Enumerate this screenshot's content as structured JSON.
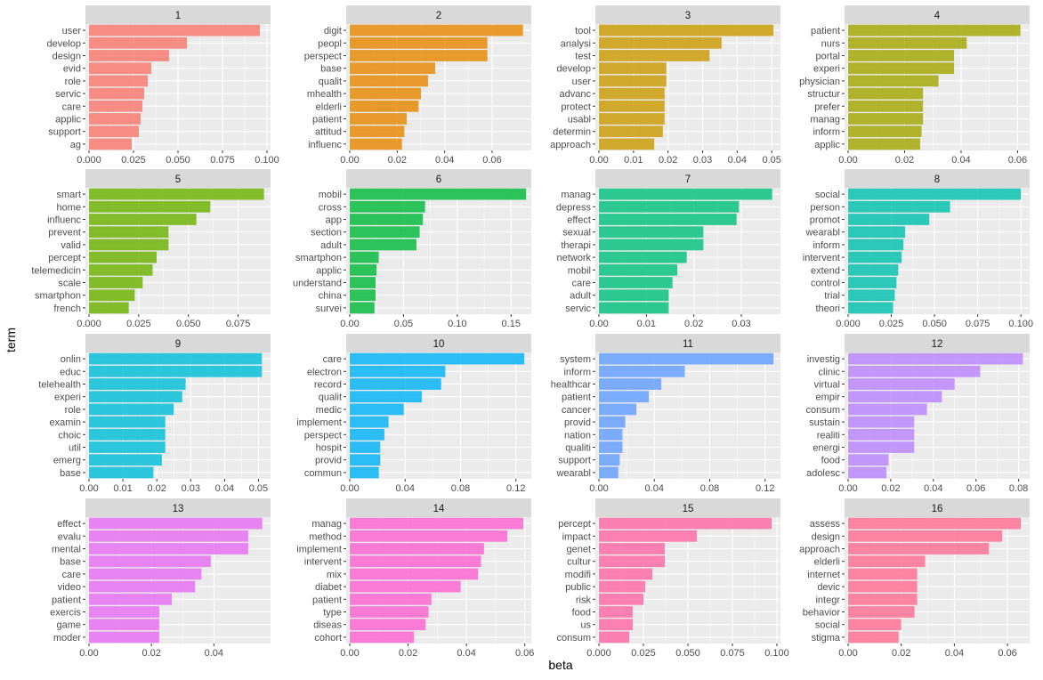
{
  "chart_data": {
    "type": "bar",
    "orientation": "horizontal",
    "xlabel": "beta",
    "ylabel": "term",
    "panels": [
      {
        "label": "1",
        "xlim": [
          0,
          0.1
        ],
        "ticks": [
          0,
          0.025,
          0.05,
          0.075,
          0.1
        ],
        "tick_labels": [
          "0.000",
          "0.025",
          "0.050",
          "0.075",
          "0.100"
        ],
        "categories": [
          "user",
          "develop",
          "design",
          "evid",
          "role",
          "servic",
          "care",
          "applic",
          "support",
          "ag"
        ],
        "values": [
          0.096,
          0.055,
          0.045,
          0.035,
          0.033,
          0.031,
          0.03,
          0.029,
          0.028,
          0.024
        ]
      },
      {
        "label": "2",
        "xlim": [
          0,
          0.075
        ],
        "ticks": [
          0,
          0.02,
          0.04,
          0.06
        ],
        "tick_labels": [
          "0.00",
          "0.02",
          "0.04",
          "0.06"
        ],
        "categories": [
          "digit",
          "peopl",
          "perspect",
          "base",
          "qualit",
          "mhealth",
          "elderli",
          "patient",
          "attitud",
          "influenc"
        ],
        "values": [
          0.073,
          0.058,
          0.058,
          0.036,
          0.033,
          0.03,
          0.029,
          0.024,
          0.023,
          0.022
        ]
      },
      {
        "label": "3",
        "xlim": [
          0,
          0.0515
        ],
        "ticks": [
          0,
          0.01,
          0.02,
          0.03,
          0.04,
          0.05
        ],
        "tick_labels": [
          "0.00",
          "0.01",
          "0.02",
          "0.03",
          "0.04",
          "0.05"
        ],
        "categories": [
          "tool",
          "analysi",
          "test",
          "develop",
          "user",
          "advanc",
          "protect",
          "usabl",
          "determin",
          "approach"
        ],
        "values": [
          0.0505,
          0.0355,
          0.032,
          0.0195,
          0.0195,
          0.019,
          0.019,
          0.019,
          0.0185,
          0.016
        ]
      },
      {
        "label": "4",
        "xlim": [
          0,
          0.063
        ],
        "ticks": [
          0,
          0.02,
          0.04,
          0.06
        ],
        "tick_labels": [
          "0.00",
          "0.02",
          "0.04",
          "0.06"
        ],
        "categories": [
          "patient",
          "nurs",
          "portal",
          "experi",
          "physician",
          "structur",
          "prefer",
          "manag",
          "inform",
          "applic"
        ],
        "values": [
          0.061,
          0.042,
          0.0375,
          0.0375,
          0.032,
          0.0265,
          0.0265,
          0.0265,
          0.026,
          0.0255
        ]
      },
      {
        "label": "5",
        "xlim": [
          0,
          0.0895
        ],
        "ticks": [
          0,
          0.025,
          0.05,
          0.075
        ],
        "tick_labels": [
          "0.000",
          "0.025",
          "0.050",
          "0.075"
        ],
        "categories": [
          "smart",
          "home",
          "influenc",
          "prevent",
          "valid",
          "percept",
          "telemedicin",
          "scale",
          "smartphon",
          "french"
        ],
        "values": [
          0.088,
          0.061,
          0.054,
          0.04,
          0.04,
          0.034,
          0.032,
          0.027,
          0.023,
          0.02
        ]
      },
      {
        "label": "6",
        "xlim": [
          0,
          0.1655
        ],
        "ticks": [
          0,
          0.05,
          0.1,
          0.15
        ],
        "tick_labels": [
          "0.00",
          "0.05",
          "0.10",
          "0.15"
        ],
        "categories": [
          "mobil",
          "cross",
          "app",
          "section",
          "adult",
          "smartphon",
          "applic",
          "understand",
          "china",
          "survei"
        ],
        "values": [
          0.164,
          0.07,
          0.068,
          0.065,
          0.062,
          0.027,
          0.025,
          0.024,
          0.024,
          0.023
        ]
      },
      {
        "label": "7",
        "xlim": [
          0,
          0.0375
        ],
        "ticks": [
          0,
          0.01,
          0.02,
          0.03
        ],
        "tick_labels": [
          "0.00",
          "0.01",
          "0.02",
          "0.03"
        ],
        "categories": [
          "manag",
          "depress",
          "effect",
          "sexual",
          "therapi",
          "network",
          "mobil",
          "care",
          "adult",
          "servic"
        ],
        "values": [
          0.0365,
          0.0295,
          0.029,
          0.022,
          0.022,
          0.0185,
          0.0165,
          0.0155,
          0.0147,
          0.0147
        ]
      },
      {
        "label": "8",
        "xlim": [
          0,
          0.103
        ],
        "ticks": [
          0,
          0.025,
          0.05,
          0.075,
          0.1
        ],
        "tick_labels": [
          "0.000",
          "0.025",
          "0.050",
          "0.075",
          "0.100"
        ],
        "categories": [
          "social",
          "person",
          "promot",
          "wearabl",
          "inform",
          "intervent",
          "extend",
          "control",
          "trial",
          "theori"
        ],
        "values": [
          0.1,
          0.059,
          0.047,
          0.033,
          0.032,
          0.031,
          0.029,
          0.028,
          0.027,
          0.026
        ]
      },
      {
        "label": "9",
        "xlim": [
          0,
          0.0525
        ],
        "ticks": [
          0,
          0.01,
          0.02,
          0.03,
          0.04,
          0.05
        ],
        "tick_labels": [
          "0.00",
          "0.01",
          "0.02",
          "0.03",
          "0.04",
          "0.05"
        ],
        "categories": [
          "onlin",
          "educ",
          "telehealth",
          "experi",
          "role",
          "examin",
          "choic",
          "util",
          "emerg",
          "base"
        ],
        "values": [
          0.051,
          0.051,
          0.0285,
          0.0275,
          0.025,
          0.0225,
          0.0225,
          0.0225,
          0.0215,
          0.019
        ]
      },
      {
        "label": "10",
        "xlim": [
          0,
          0.1285
        ],
        "ticks": [
          0,
          0.04,
          0.08,
          0.12
        ],
        "tick_labels": [
          "0.00",
          "0.04",
          "0.08",
          "0.12"
        ],
        "categories": [
          "care",
          "electron",
          "record",
          "qualit",
          "medic",
          "implement",
          "perspect",
          "hospit",
          "provid",
          "commun"
        ],
        "values": [
          0.126,
          0.069,
          0.066,
          0.052,
          0.039,
          0.028,
          0.025,
          0.022,
          0.022,
          0.021
        ]
      },
      {
        "label": "11",
        "xlim": [
          0,
          0.1285
        ],
        "ticks": [
          0,
          0.04,
          0.08,
          0.12
        ],
        "tick_labels": [
          "0.00",
          "0.04",
          "0.08",
          "0.12"
        ],
        "categories": [
          "system",
          "inform",
          "healthcar",
          "patient",
          "cancer",
          "provid",
          "nation",
          "qualiti",
          "support",
          "wearabl"
        ],
        "values": [
          0.126,
          0.062,
          0.045,
          0.036,
          0.027,
          0.019,
          0.017,
          0.017,
          0.015,
          0.014
        ]
      },
      {
        "label": "12",
        "xlim": [
          0,
          0.0835
        ],
        "ticks": [
          0,
          0.02,
          0.04,
          0.06,
          0.08
        ],
        "tick_labels": [
          "0.00",
          "0.02",
          "0.04",
          "0.06",
          "0.08"
        ],
        "categories": [
          "investig",
          "clinic",
          "virtual",
          "empir",
          "consum",
          "sustain",
          "realiti",
          "energi",
          "food",
          "adolesc"
        ],
        "values": [
          0.082,
          0.062,
          0.05,
          0.044,
          0.037,
          0.031,
          0.031,
          0.031,
          0.019,
          0.018
        ]
      },
      {
        "label": "13",
        "xlim": [
          0,
          0.057
        ],
        "ticks": [
          0,
          0.02,
          0.04
        ],
        "tick_labels": [
          "0.00",
          "0.02",
          "0.04"
        ],
        "categories": [
          "effect",
          "evalu",
          "mental",
          "base",
          "care",
          "video",
          "patient",
          "exercis",
          "game",
          "moder"
        ],
        "values": [
          0.0555,
          0.051,
          0.051,
          0.039,
          0.036,
          0.034,
          0.0265,
          0.0225,
          0.0225,
          0.0225
        ]
      },
      {
        "label": "14",
        "xlim": [
          0,
          0.061
        ],
        "ticks": [
          0,
          0.02,
          0.04,
          0.06
        ],
        "tick_labels": [
          "0.00",
          "0.02",
          "0.04",
          "0.06"
        ],
        "categories": [
          "manag",
          "method",
          "implement",
          "intervent",
          "mix",
          "diabet",
          "patient",
          "type",
          "diseas",
          "cohort"
        ],
        "values": [
          0.0595,
          0.054,
          0.046,
          0.045,
          0.044,
          0.038,
          0.028,
          0.027,
          0.026,
          0.022
        ]
      },
      {
        "label": "15",
        "xlim": [
          0,
          0.1
        ],
        "ticks": [
          0,
          0.025,
          0.05,
          0.075,
          0.1
        ],
        "tick_labels": [
          "0.000",
          "0.025",
          "0.050",
          "0.075",
          "0.100"
        ],
        "categories": [
          "percept",
          "impact",
          "genet",
          "cultur",
          "modifi",
          "public",
          "risk",
          "food",
          "us",
          "consum"
        ],
        "values": [
          0.097,
          0.055,
          0.037,
          0.037,
          0.03,
          0.026,
          0.025,
          0.019,
          0.019,
          0.017
        ]
      },
      {
        "label": "16",
        "xlim": [
          0,
          0.067
        ],
        "ticks": [
          0,
          0.02,
          0.04,
          0.06
        ],
        "tick_labels": [
          "0.00",
          "0.02",
          "0.04",
          "0.06"
        ],
        "categories": [
          "assess",
          "design",
          "approach",
          "elderli",
          "internet",
          "devic",
          "integr",
          "behavior",
          "social",
          "stigma"
        ],
        "values": [
          0.065,
          0.058,
          0.053,
          0.029,
          0.026,
          0.026,
          0.026,
          0.025,
          0.02,
          0.019
        ]
      }
    ],
    "colors": [
      "#F8766D",
      "#E58700",
      "#C99800",
      "#A3A500",
      "#6BB100",
      "#00BA38",
      "#00BF7D",
      "#00C0AF",
      "#00BCD8",
      "#00B0F6",
      "#619CFF",
      "#B983FF",
      "#E76BF3",
      "#FD61D1",
      "#FF67A4",
      "#FF6C91"
    ],
    "panel_background": "#EBEBEB",
    "strip_background": "#D9D9D9",
    "grid": true,
    "legend": "none"
  }
}
